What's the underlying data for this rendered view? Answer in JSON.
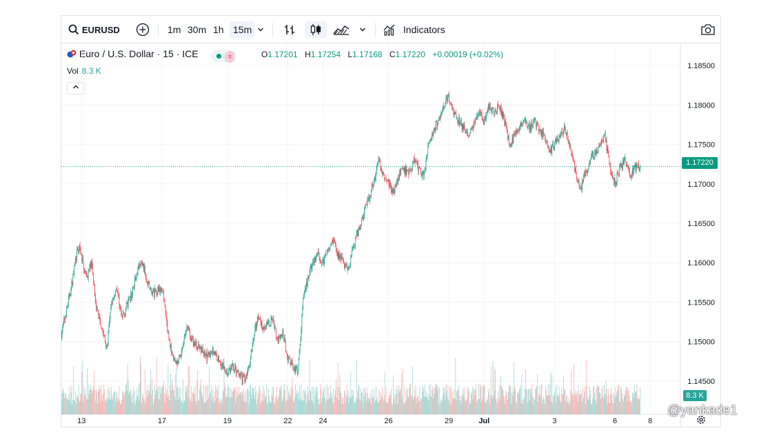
{
  "toolbar": {
    "symbol": "EURUSD",
    "intervals": [
      "1m",
      "30m",
      "1h",
      "15m"
    ],
    "active_interval": "15m",
    "indicators_label": "Indicators"
  },
  "legend": {
    "title": "Euro / U.S. Dollar · 15 · ICE",
    "open_label": "O",
    "open": "1.17201",
    "high_label": "H",
    "high": "1.17254",
    "low_label": "L",
    "low": "1.17168",
    "close_label": "C",
    "close": "1.17220",
    "change": "+0.00019 (+0.02%)",
    "vol_label": "Vol",
    "vol_value": "8.3 K"
  },
  "price_badge": "1.17220",
  "vol_badge": "8.3 K",
  "watermark": "@yankade1",
  "colors": {
    "up": "#089981",
    "down": "#f23645",
    "up_vol": "#26a69a",
    "down_vol": "#ef5350"
  },
  "chart_data": {
    "type": "line",
    "y_ticks": [
      "1.18500",
      "1.18000",
      "1.17500",
      "1.17000",
      "1.16500",
      "1.16000",
      "1.15500",
      "1.15000",
      "1.14500"
    ],
    "ylim": [
      1.1408,
      1.1878
    ],
    "x_ticks": [
      "13",
      "17",
      "19",
      "22",
      "24",
      "26",
      "29",
      "Jul",
      "3",
      "6",
      "8"
    ],
    "x_tick_positions": [
      2,
      18,
      31,
      43,
      50,
      63,
      75,
      82,
      96,
      108,
      115
    ],
    "xlim": [
      -2,
      121
    ],
    "last_price": 1.1722,
    "price_path": [
      [
        -2,
        1.151
      ],
      [
        0,
        1.157
      ],
      [
        1,
        1.161
      ],
      [
        1.5,
        1.162
      ],
      [
        3,
        1.158
      ],
      [
        4,
        1.16
      ],
      [
        5,
        1.154
      ],
      [
        6,
        1.152
      ],
      [
        7,
        1.149
      ],
      [
        8,
        1.155
      ],
      [
        9,
        1.157
      ],
      [
        10,
        1.153
      ],
      [
        12,
        1.156
      ],
      [
        13,
        1.159
      ],
      [
        14,
        1.16
      ],
      [
        16,
        1.156
      ],
      [
        18,
        1.157
      ],
      [
        19,
        1.152
      ],
      [
        20,
        1.148
      ],
      [
        21,
        1.147
      ],
      [
        22,
        1.149
      ],
      [
        23,
        1.152
      ],
      [
        24,
        1.15
      ],
      [
        26,
        1.149
      ],
      [
        27,
        1.148
      ],
      [
        28,
        1.149
      ],
      [
        29,
        1.148
      ],
      [
        30,
        1.147
      ],
      [
        31,
        1.146
      ],
      [
        32,
        1.147
      ],
      [
        34,
        1.145
      ],
      [
        35,
        1.146
      ],
      [
        36,
        1.15
      ],
      [
        37,
        1.153
      ],
      [
        38,
        1.152
      ],
      [
        39,
        1.152
      ],
      [
        40,
        1.153
      ],
      [
        41,
        1.15
      ],
      [
        42,
        1.151
      ],
      [
        43,
        1.148
      ],
      [
        44,
        1.147
      ],
      [
        45,
        1.146
      ],
      [
        46,
        1.155
      ],
      [
        47,
        1.158
      ],
      [
        48,
        1.16
      ],
      [
        49,
        1.161
      ],
      [
        50,
        1.16
      ],
      [
        51,
        1.162
      ],
      [
        52,
        1.163
      ],
      [
        53,
        1.161
      ],
      [
        55,
        1.159
      ],
      [
        56,
        1.162
      ],
      [
        57,
        1.164
      ],
      [
        58,
        1.166
      ],
      [
        59,
        1.168
      ],
      [
        60,
        1.17
      ],
      [
        61,
        1.173
      ],
      [
        62,
        1.171
      ],
      [
        63,
        1.17
      ],
      [
        64,
        1.169
      ],
      [
        65,
        1.171
      ],
      [
        66,
        1.172
      ],
      [
        67,
        1.171
      ],
      [
        68,
        1.173
      ],
      [
        69,
        1.172
      ],
      [
        70,
        1.171
      ],
      [
        71,
        1.175
      ],
      [
        72,
        1.177
      ],
      [
        73,
        1.178
      ],
      [
        74,
        1.18
      ],
      [
        75,
        1.181
      ],
      [
        76,
        1.179
      ],
      [
        77,
        1.178
      ],
      [
        78,
        1.177
      ],
      [
        79,
        1.176
      ],
      [
        80,
        1.178
      ],
      [
        81,
        1.179
      ],
      [
        82,
        1.178
      ],
      [
        83,
        1.18
      ],
      [
        84,
        1.179
      ],
      [
        85,
        1.18
      ],
      [
        86,
        1.178
      ],
      [
        87,
        1.175
      ],
      [
        88,
        1.176
      ],
      [
        89,
        1.177
      ],
      [
        90,
        1.178
      ],
      [
        91,
        1.177
      ],
      [
        92,
        1.178
      ],
      [
        93,
        1.177
      ],
      [
        94,
        1.176
      ],
      [
        95,
        1.174
      ],
      [
        96,
        1.175
      ],
      [
        97,
        1.176
      ],
      [
        98,
        1.177
      ],
      [
        99,
        1.175
      ],
      [
        100,
        1.172
      ],
      [
        101,
        1.169
      ],
      [
        102,
        1.171
      ],
      [
        103,
        1.173
      ],
      [
        104,
        1.174
      ],
      [
        105,
        1.175
      ],
      [
        106,
        1.176
      ],
      [
        107,
        1.172
      ],
      [
        108,
        1.17
      ],
      [
        109,
        1.172
      ],
      [
        110,
        1.173
      ],
      [
        111,
        1.171
      ],
      [
        112,
        1.172
      ],
      [
        113,
        1.1722
      ]
    ],
    "volume_range": "relative"
  }
}
